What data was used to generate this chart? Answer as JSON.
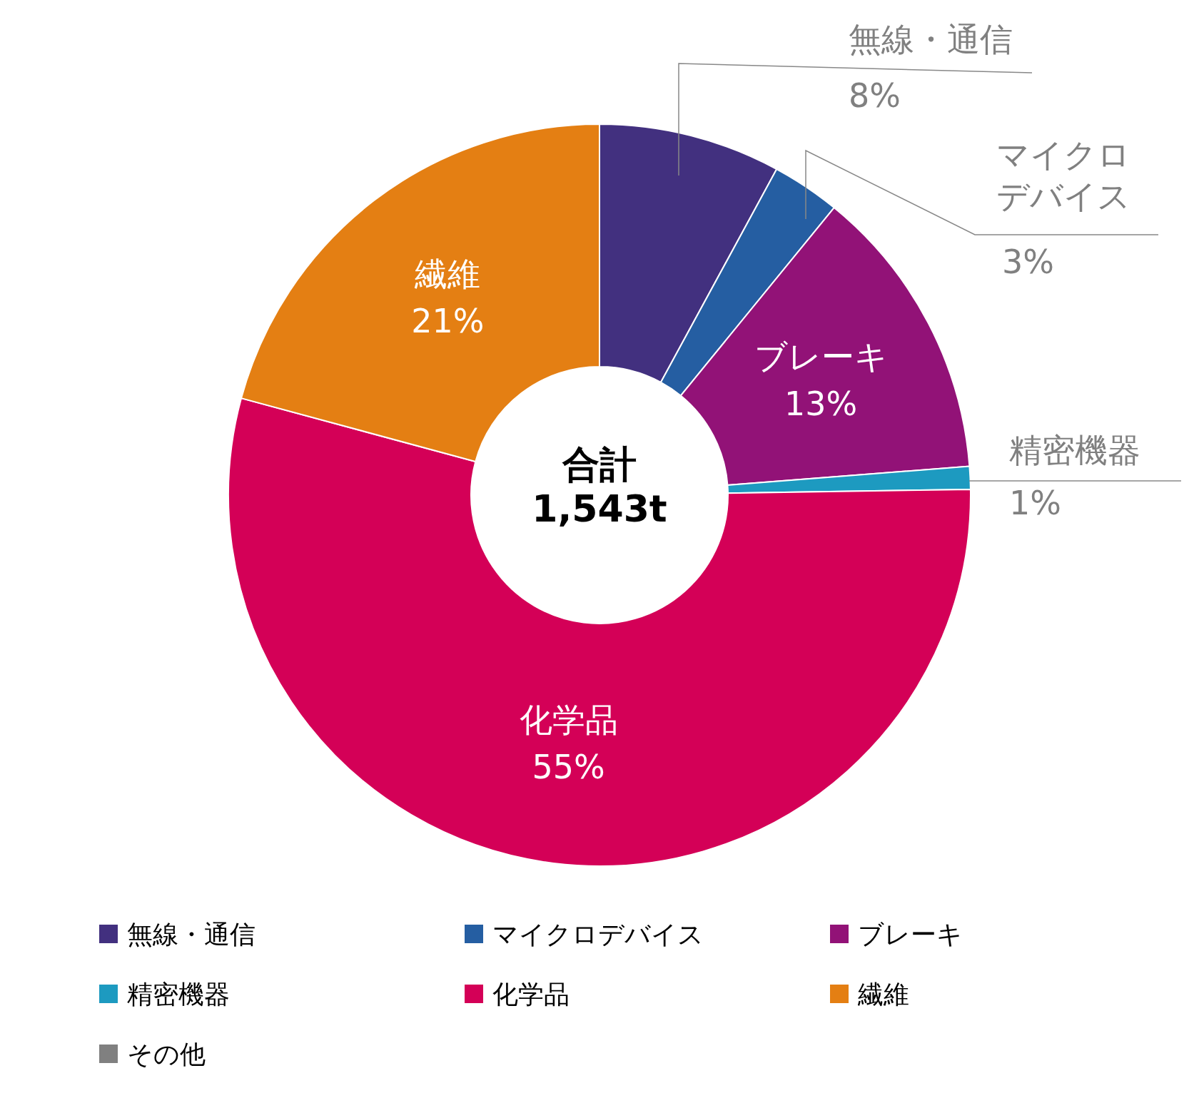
{
  "chart_data": {
    "type": "donut",
    "categories": [
      "無線・通信",
      "マイクロデバイス",
      "ブレーキ",
      "精密機器",
      "化学品",
      "繊維",
      "その他"
    ],
    "values": [
      8,
      3,
      13,
      1,
      55,
      21,
      0
    ],
    "value_labels": [
      "8%",
      "3%",
      "13%",
      "1%",
      "55%",
      "21%",
      null
    ],
    "colors": [
      "#42307f",
      "#255ea2",
      "#921277",
      "#1d9ac0",
      "#d40057",
      "#e47f13",
      "#808080"
    ],
    "annotations": [
      "合計",
      "1,543t"
    ],
    "legend": "bottom"
  }
}
